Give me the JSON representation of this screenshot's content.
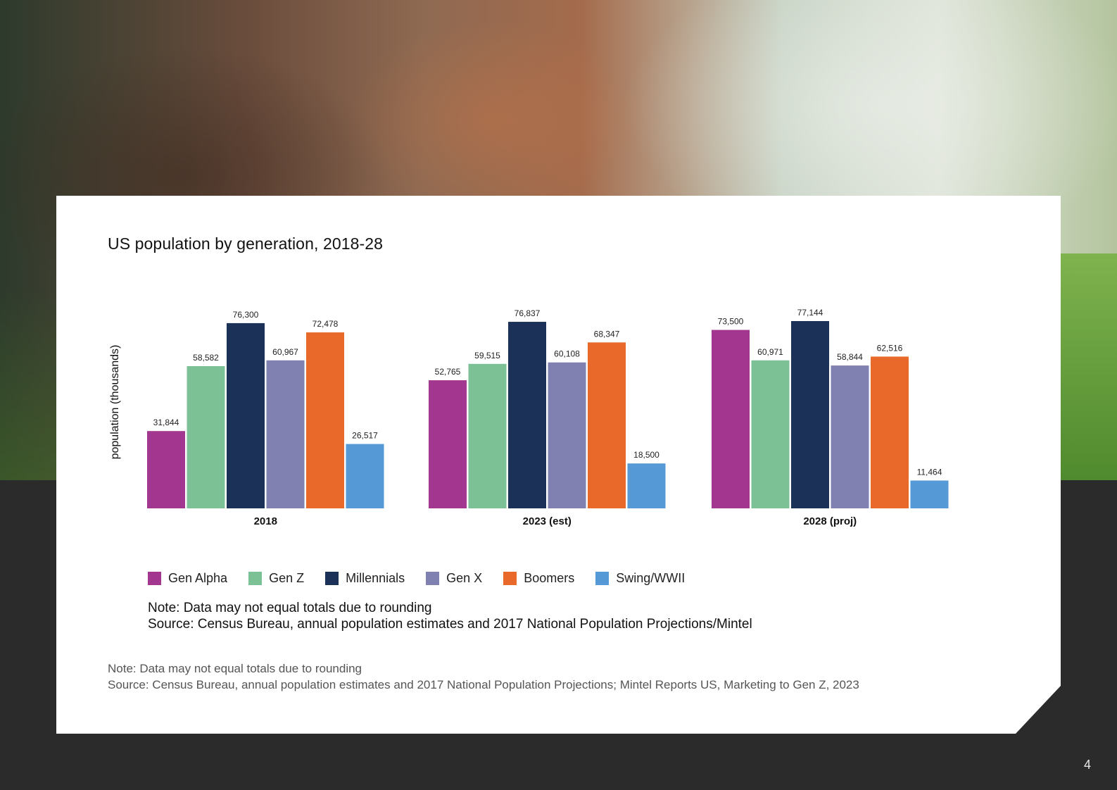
{
  "photo": {
    "icon": "group-photo-image"
  },
  "chart_data": {
    "type": "bar",
    "title": "US population by generation, 2018-28",
    "ylabel": "population (thousands)",
    "xlabel": "",
    "categories": [
      "2018",
      "2023 (est)",
      "2028 (proj)"
    ],
    "series": [
      {
        "name": "Gen Alpha",
        "color": "#a3378f",
        "values": [
          31844,
          52765,
          73500
        ],
        "labels": [
          "31,844",
          "52,765",
          "73,500"
        ]
      },
      {
        "name": "Gen Z",
        "color": "#7cc196",
        "values": [
          58582,
          59515,
          60971
        ],
        "labels": [
          "58,582",
          "59,515",
          "60,971"
        ]
      },
      {
        "name": "Millennials",
        "color": "#1b3157",
        "values": [
          76300,
          76837,
          77144
        ],
        "labels": [
          "76,300",
          "76,837",
          "77,144"
        ]
      },
      {
        "name": "Gen X",
        "color": "#8181b1",
        "values": [
          60967,
          60108,
          58844
        ],
        "labels": [
          "60,967",
          "60,108",
          "58,844"
        ]
      },
      {
        "name": "Boomers",
        "color": "#e8692a",
        "values": [
          72478,
          68347,
          62516
        ],
        "labels": [
          "72,478",
          "68,347",
          "62,516"
        ]
      },
      {
        "name": "Swing/WWII",
        "color": "#559ad6",
        "values": [
          26517,
          18500,
          11464
        ],
        "labels": [
          "26,517",
          "18,500",
          "11,464"
        ]
      }
    ],
    "ylim": [
      0,
      77144
    ],
    "grid": false,
    "legend_position": "bottom"
  },
  "inner_note": {
    "line1": "Note: Data may not equal totals due to rounding",
    "line2": "Source: Census Bureau, annual population estimates and 2017 National Population Projections/Mintel"
  },
  "outer_note": {
    "line1": "Note: Data may not equal totals due to rounding",
    "line2": "Source: Census Bureau, annual population estimates and 2017 National Population Projections; Mintel Reports US, Marketing to Gen Z, 2023"
  },
  "page_number": "4"
}
